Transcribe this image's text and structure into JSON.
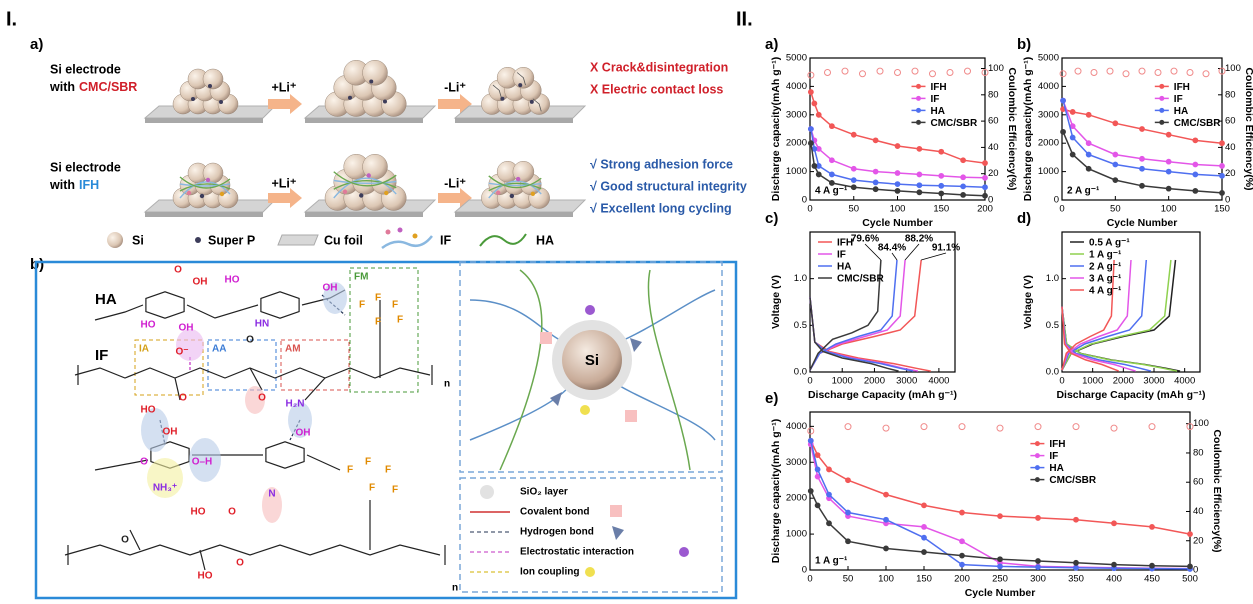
{
  "part_I": {
    "label": "I.",
    "a": {
      "label": "a)",
      "rows": [
        {
          "line1": "Si electrode",
          "line2": "with",
          "binder": "CMC/SBR",
          "steps": [
            "+Li⁺",
            "-Li⁺"
          ],
          "outcomes": [
            "X Crack&disintegration",
            "X Electric contact loss"
          ]
        },
        {
          "line1": "Si electrode",
          "line2": "with",
          "binder": "IFH",
          "steps": [
            "+Li⁺",
            "-Li⁺"
          ],
          "outcomes": [
            "√ Strong adhesion force",
            "√ Good structural integrity",
            "√ Excellent long cycling"
          ]
        }
      ],
      "legend": [
        "Si",
        "Super P",
        "Cu foil",
        "IF",
        "HA"
      ]
    },
    "b": {
      "label": "b)",
      "polymers": [
        "HA",
        "IF"
      ],
      "groups": [
        "IA",
        "AA",
        "AM",
        "FM"
      ],
      "repeat": "n",
      "chem_labels": [
        "OH",
        "O",
        "HO",
        "OH",
        "HO",
        "HN",
        "O",
        "OH",
        "O⁻",
        "O",
        "O",
        "HO",
        "OH",
        "H₂N",
        "OH",
        "O",
        "O–H",
        "NH₃⁺",
        "HO",
        "O",
        "N",
        "O",
        "HO",
        "O",
        "F",
        "F",
        "F",
        "F",
        "F",
        "F",
        "F",
        "F",
        "F",
        "F"
      ],
      "particle": "Si",
      "legend": [
        "SiO₂ layer",
        "Covalent bond",
        "Hydrogen bond",
        "Electrostatic interaction",
        "Ion coupling"
      ]
    }
  },
  "part_II": {
    "label": "II."
  },
  "chart_data": [
    {
      "panel": "a)",
      "type": "line",
      "xlabel": "Cycle Number",
      "ylabel": "Discharge capacity(mAh g⁻¹)",
      "y2label": "Coulombic Efficiency(%)",
      "annotation": "4 A g⁻¹",
      "xlim": [
        0,
        200
      ],
      "xticks": [
        0,
        50,
        100,
        150,
        200
      ],
      "ylim": [
        0,
        5000
      ],
      "yticks": [
        0,
        1000,
        2000,
        3000,
        4000,
        5000
      ],
      "y2lim": [
        0,
        108
      ],
      "y2ticks": [
        0,
        20,
        40,
        60,
        80,
        100
      ],
      "markers": true,
      "legend": "right",
      "series": [
        {
          "name": "IFH",
          "color": "#f25757",
          "x": [
            1,
            5,
            10,
            25,
            50,
            75,
            100,
            125,
            150,
            175,
            200
          ],
          "values": [
            3800,
            3400,
            3000,
            2600,
            2300,
            2100,
            1900,
            1800,
            1700,
            1400,
            1300
          ]
        },
        {
          "name": "IF",
          "color": "#e356e8",
          "x": [
            1,
            5,
            10,
            25,
            50,
            75,
            100,
            125,
            150,
            175,
            200
          ],
          "values": [
            2500,
            2100,
            1800,
            1400,
            1100,
            1000,
            950,
            900,
            850,
            800,
            780
          ]
        },
        {
          "name": "HA",
          "color": "#4f6ff0",
          "x": [
            1,
            5,
            10,
            25,
            50,
            75,
            100,
            125,
            150,
            175,
            200
          ],
          "values": [
            2500,
            1800,
            1200,
            900,
            700,
            620,
            560,
            520,
            500,
            480,
            450
          ]
        },
        {
          "name": "CMC/SBR",
          "color": "#3a3a3a",
          "x": [
            1,
            5,
            10,
            25,
            50,
            75,
            100,
            125,
            150,
            175,
            200
          ],
          "values": [
            2000,
            1200,
            900,
            600,
            450,
            380,
            320,
            270,
            230,
            180,
            150
          ]
        },
        {
          "color": "#f08a8a",
          "axis": "y2",
          "marker": "hollow",
          "x": [
            1,
            20,
            40,
            60,
            80,
            100,
            120,
            140,
            160,
            180,
            200
          ],
          "values": [
            95,
            97,
            98,
            96,
            98,
            97,
            98,
            96,
            97,
            98,
            97
          ]
        }
      ]
    },
    {
      "panel": "b)",
      "type": "line",
      "xlabel": "Cycle Number",
      "ylabel": "Discharge capacity(mAh g⁻¹)",
      "y2label": "Coulombic Efficiency(%)",
      "annotation": "2 A g⁻¹",
      "xlim": [
        0,
        150
      ],
      "xticks": [
        0,
        50,
        100,
        150
      ],
      "ylim": [
        0,
        5000
      ],
      "yticks": [
        0,
        1000,
        2000,
        3000,
        4000,
        5000
      ],
      "y2lim": [
        0,
        108
      ],
      "y2ticks": [
        0,
        20,
        40,
        60,
        80,
        100
      ],
      "markers": true,
      "legend": "right",
      "series": [
        {
          "name": "IFH",
          "color": "#f25757",
          "x": [
            1,
            10,
            25,
            50,
            75,
            100,
            125,
            150
          ],
          "values": [
            3200,
            3100,
            3000,
            2700,
            2500,
            2300,
            2100,
            2000
          ]
        },
        {
          "name": "IF",
          "color": "#e356e8",
          "x": [
            1,
            10,
            25,
            50,
            75,
            100,
            125,
            150
          ],
          "values": [
            3500,
            2600,
            2000,
            1600,
            1450,
            1350,
            1250,
            1200
          ]
        },
        {
          "name": "HA",
          "color": "#4f6ff0",
          "x": [
            1,
            10,
            25,
            50,
            75,
            100,
            125,
            150
          ],
          "values": [
            3500,
            2200,
            1600,
            1250,
            1100,
            1000,
            900,
            850
          ]
        },
        {
          "name": "CMC/SBR",
          "color": "#3a3a3a",
          "x": [
            1,
            10,
            25,
            50,
            75,
            100,
            125,
            150
          ],
          "values": [
            2400,
            1600,
            1100,
            700,
            500,
            400,
            320,
            250
          ]
        },
        {
          "color": "#f08a8a",
          "axis": "y2",
          "marker": "hollow",
          "x": [
            1,
            15,
            30,
            45,
            60,
            75,
            90,
            105,
            120,
            135,
            150
          ],
          "values": [
            96,
            98,
            97,
            98,
            96,
            98,
            97,
            98,
            97,
            96,
            98
          ]
        }
      ]
    },
    {
      "panel": "c)",
      "type": "line",
      "xlabel": "Discharge Capacity (mAh g⁻¹)",
      "ylabel": "Voltage (V)",
      "xlim": [
        0,
        4500
      ],
      "xticks": [
        0,
        1000,
        2000,
        3000,
        4000
      ],
      "ylim": [
        0,
        1.5
      ],
      "yticks": [
        {
          "value": 0,
          "label": "0.0"
        },
        0.5,
        {
          "value": 1,
          "label": "1.0"
        }
      ],
      "markers": false,
      "legend": "upper left",
      "annotations": [
        "79.6%",
        "84.4%",
        "88.2%",
        "91.1%"
      ],
      "series": [
        {
          "name": "IFH",
          "color": "#f25757",
          "x": [
            0,
            150,
            600,
            1500,
            2600,
            3300,
            3750,
            null,
            0,
            300,
            1000,
            2000,
            2800,
            3250,
            3450
          ],
          "values": [
            0.8,
            0.32,
            0.22,
            0.15,
            0.09,
            0.04,
            0.01,
            null,
            0.02,
            0.2,
            0.3,
            0.38,
            0.45,
            0.6,
            1.2
          ]
        },
        {
          "name": "IF",
          "color": "#e356e8",
          "x": [
            0,
            150,
            500,
            1300,
            2300,
            2900,
            3350,
            null,
            0,
            300,
            900,
            1700,
            2400,
            2800,
            2950
          ],
          "values": [
            0.8,
            0.32,
            0.22,
            0.15,
            0.09,
            0.04,
            0.01,
            null,
            0.02,
            0.2,
            0.3,
            0.38,
            0.45,
            0.6,
            1.2
          ]
        },
        {
          "name": "HA",
          "color": "#4f6ff0",
          "x": [
            0,
            150,
            500,
            1200,
            2200,
            2800,
            3200,
            null,
            0,
            300,
            800,
            1500,
            2200,
            2550,
            2700
          ],
          "values": [
            0.8,
            0.32,
            0.22,
            0.15,
            0.09,
            0.04,
            0.01,
            null,
            0.02,
            0.2,
            0.3,
            0.38,
            0.45,
            0.6,
            1.2
          ]
        },
        {
          "name": "CMC/SBR",
          "color": "#3a3a3a",
          "x": [
            0,
            150,
            400,
            1000,
            1900,
            2400,
            2750,
            null,
            0,
            250,
            700,
            1300,
            1800,
            2100,
            2200
          ],
          "values": [
            0.8,
            0.32,
            0.22,
            0.15,
            0.09,
            0.04,
            0.01,
            null,
            0.02,
            0.2,
            0.35,
            0.42,
            0.5,
            0.65,
            1.2
          ]
        }
      ]
    },
    {
      "panel": "d)",
      "type": "line",
      "xlabel": "Discharge Capacity (mAh g⁻¹)",
      "ylabel": "Voltage (V)",
      "xlim": [
        0,
        4500
      ],
      "xticks": [
        0,
        1000,
        2000,
        3000,
        4000
      ],
      "ylim": [
        0,
        1.5
      ],
      "yticks": [
        {
          "value": 0,
          "label": "0.0"
        },
        0.5,
        {
          "value": 1,
          "label": "1.0"
        }
      ],
      "markers": false,
      "legend": "upper left",
      "series": [
        {
          "name": "0.5 A g⁻¹",
          "color": "#222222",
          "x": [
            0,
            150,
            600,
            1600,
            2700,
            3400,
            3850,
            null,
            0,
            300,
            1000,
            2000,
            3000,
            3500,
            3700
          ],
          "values": [
            0.7,
            0.3,
            0.2,
            0.13,
            0.08,
            0.04,
            0.01,
            null,
            0.02,
            0.2,
            0.3,
            0.38,
            0.45,
            0.6,
            1.2
          ]
        },
        {
          "name": "1 A g⁻¹",
          "color": "#8fd14f",
          "x": [
            0,
            150,
            580,
            1550,
            2650,
            3300,
            3750,
            null,
            0,
            290,
            950,
            1900,
            2850,
            3350,
            3550
          ],
          "values": [
            0.7,
            0.3,
            0.2,
            0.13,
            0.08,
            0.04,
            0.01,
            null,
            0.02,
            0.2,
            0.3,
            0.38,
            0.45,
            0.6,
            1.2
          ]
        },
        {
          "name": "2 A g⁻¹",
          "color": "#4f6ff0",
          "x": [
            0,
            120,
            450,
            1200,
            2050,
            2550,
            2900,
            null,
            0,
            220,
            740,
            1480,
            2200,
            2600,
            2750
          ],
          "values": [
            0.7,
            0.3,
            0.2,
            0.13,
            0.08,
            0.04,
            0.01,
            null,
            0.02,
            0.2,
            0.3,
            0.38,
            0.45,
            0.6,
            1.2
          ]
        },
        {
          "name": "3 A g⁻¹",
          "color": "#e356e8",
          "x": [
            0,
            100,
            370,
            1000,
            1700,
            2100,
            2400,
            null,
            0,
            180,
            600,
            1200,
            1800,
            2130,
            2250
          ],
          "values": [
            0.7,
            0.3,
            0.2,
            0.13,
            0.08,
            0.04,
            0.01,
            null,
            0.02,
            0.2,
            0.3,
            0.38,
            0.45,
            0.6,
            1.2
          ]
        },
        {
          "name": "4 A g⁻¹",
          "color": "#f25757",
          "x": [
            0,
            80,
            290,
            770,
            1300,
            1620,
            1850,
            null,
            0,
            140,
            460,
            920,
            1360,
            1610,
            1700
          ],
          "values": [
            0.7,
            0.3,
            0.2,
            0.13,
            0.08,
            0.04,
            0.01,
            null,
            0.02,
            0.2,
            0.3,
            0.38,
            0.45,
            0.6,
            1.2
          ]
        }
      ]
    },
    {
      "panel": "e)",
      "type": "line",
      "xlabel": "Cycle Number",
      "ylabel": "Discharge capacity(mAh g⁻¹)",
      "y2label": "Coulombic Efficiency(%)",
      "annotation": "1 A g⁻¹",
      "xlim": [
        0,
        500
      ],
      "xticks": [
        0,
        50,
        100,
        150,
        200,
        250,
        300,
        350,
        400,
        450,
        500
      ],
      "ylim": [
        0,
        4400
      ],
      "yticks": [
        0,
        1000,
        2000,
        3000,
        4000
      ],
      "y2lim": [
        0,
        108
      ],
      "y2ticks": [
        0,
        20,
        40,
        60,
        80,
        100
      ],
      "markers": true,
      "legend": "right",
      "series": [
        {
          "name": "IFH",
          "color": "#f25757",
          "x": [
            1,
            10,
            25,
            50,
            100,
            150,
            200,
            250,
            300,
            350,
            400,
            450,
            500
          ],
          "values": [
            3600,
            3200,
            2800,
            2500,
            2100,
            1800,
            1600,
            1500,
            1450,
            1400,
            1300,
            1200,
            1000
          ]
        },
        {
          "name": "IF",
          "color": "#e356e8",
          "x": [
            1,
            10,
            25,
            50,
            100,
            150,
            200,
            250,
            300,
            350,
            400,
            450,
            500
          ],
          "values": [
            3500,
            2600,
            2000,
            1500,
            1300,
            1200,
            800,
            200,
            100,
            80,
            60,
            50,
            40
          ]
        },
        {
          "name": "HA",
          "color": "#4f6ff0",
          "x": [
            1,
            10,
            25,
            50,
            100,
            150,
            200,
            250,
            300,
            350,
            400,
            450,
            500
          ],
          "values": [
            3600,
            2800,
            2100,
            1600,
            1400,
            900,
            150,
            100,
            80,
            60,
            50,
            40,
            30
          ]
        },
        {
          "name": "CMC/SBR",
          "color": "#3a3a3a",
          "x": [
            1,
            10,
            25,
            50,
            100,
            150,
            200,
            250,
            300,
            350,
            400,
            450,
            500
          ],
          "values": [
            2200,
            1800,
            1300,
            800,
            600,
            500,
            400,
            300,
            250,
            200,
            150,
            120,
            100
          ]
        },
        {
          "color": "#f08a8a",
          "axis": "y2",
          "marker": "hollow",
          "x": [
            1,
            50,
            100,
            150,
            200,
            250,
            300,
            350,
            400,
            450,
            500
          ],
          "values": [
            95,
            98,
            97,
            98,
            98,
            97,
            98,
            98,
            97,
            98,
            98
          ]
        }
      ]
    }
  ]
}
